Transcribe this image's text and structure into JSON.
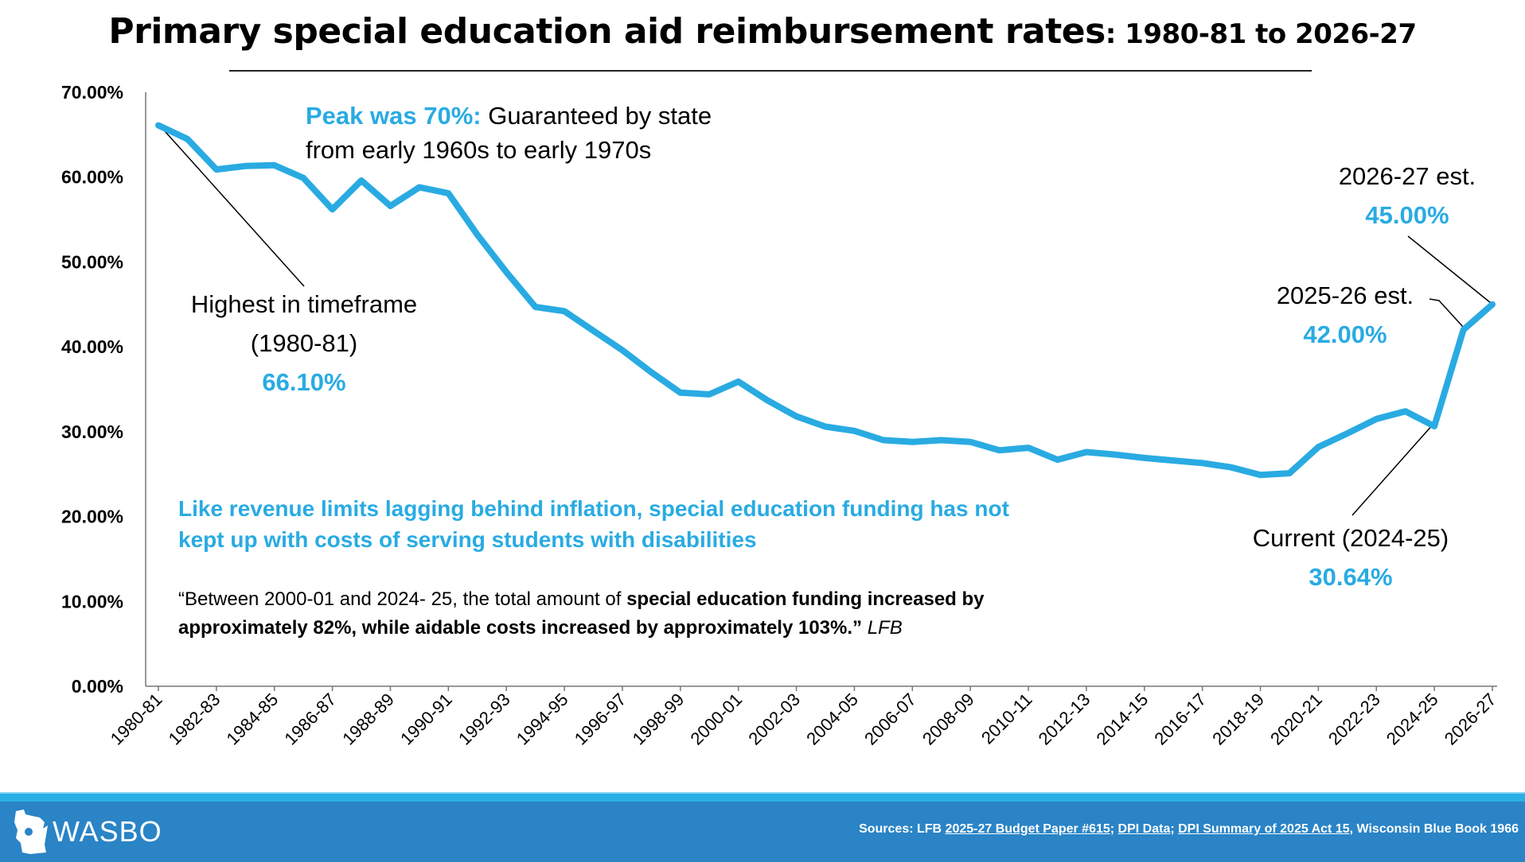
{
  "title": {
    "main": "Primary special education aid reimbursement rates",
    "range": ": 1980-81 to 2026-27"
  },
  "chart_data": {
    "type": "line",
    "title": "Primary special education aid reimbursement rates: 1980-81 to 2026-27",
    "xlabel": "",
    "ylabel": "",
    "ylim": [
      0,
      70
    ],
    "grid": false,
    "y_ticks": [
      "0.00%",
      "10.00%",
      "20.00%",
      "30.00%",
      "40.00%",
      "50.00%",
      "60.00%",
      "70.00%"
    ],
    "x_tick_labels": [
      "1980-81",
      "1982-83",
      "1984-85",
      "1986-87",
      "1988-89",
      "1990-91",
      "1992-93",
      "1994-95",
      "1996-97",
      "1998-99",
      "2000-01",
      "2002-03",
      "2004-05",
      "2006-07",
      "2008-09",
      "2010-11",
      "2012-13",
      "2014-15",
      "2016-17",
      "2018-19",
      "2020-21",
      "2022-23",
      "2024-25",
      "2026-27"
    ],
    "categories": [
      "1980-81",
      "1981-82",
      "1982-83",
      "1983-84",
      "1984-85",
      "1985-86",
      "1986-87",
      "1987-88",
      "1988-89",
      "1989-90",
      "1990-91",
      "1991-92",
      "1992-93",
      "1993-94",
      "1994-95",
      "1995-96",
      "1996-97",
      "1997-98",
      "1998-99",
      "1999-00",
      "2000-01",
      "2001-02",
      "2002-03",
      "2003-04",
      "2004-05",
      "2005-06",
      "2006-07",
      "2007-08",
      "2008-09",
      "2009-10",
      "2010-11",
      "2011-12",
      "2012-13",
      "2013-14",
      "2014-15",
      "2015-16",
      "2016-17",
      "2017-18",
      "2018-19",
      "2019-20",
      "2020-21",
      "2021-22",
      "2022-23",
      "2023-24",
      "2024-25",
      "2025-26",
      "2026-27"
    ],
    "values": [
      66.1,
      64.5,
      60.9,
      61.3,
      61.4,
      59.9,
      56.2,
      59.6,
      56.6,
      58.8,
      58.1,
      53.2,
      48.8,
      44.7,
      44.2,
      41.9,
      39.6,
      37.0,
      34.6,
      34.4,
      35.9,
      33.7,
      31.8,
      30.6,
      30.1,
      29.0,
      28.8,
      29.0,
      28.8,
      27.8,
      28.1,
      26.7,
      27.6,
      27.3,
      26.9,
      26.6,
      26.3,
      25.8,
      24.9,
      25.1,
      28.2,
      29.8,
      31.5,
      32.4,
      30.64,
      42.0,
      45.0
    ],
    "line_color": "#29abe2"
  },
  "annotations": {
    "peak_highlight": "Peak was 70%:",
    "peak_text_1": " Guaranteed by state",
    "peak_text_2": "from early 1960s to early 1970s",
    "highest_1": "Highest in timeframe",
    "highest_2": "(1980-81)",
    "highest_value": "66.10%",
    "est2627_label": "2026-27 est.",
    "est2627_value": "45.00%",
    "est2526_label": "2025-26 est.",
    "est2526_value": "42.00%",
    "current_label": "Current (2024-25)",
    "current_value": "30.64%",
    "message": "Like revenue limits lagging behind inflation, special education funding has not kept up with costs of serving students with disabilities",
    "quote_start": "“Between 2000-01 and 2024- 25, the total amount of ",
    "quote_bold": "special education funding increased by approximately 82%, while aidable costs increased by approximately 103%.”",
    "quote_source": " LFB"
  },
  "footer": {
    "logo": "WASBO",
    "sources_prefix": "Sources: LFB ",
    "source_1": "2025-27 Budget Paper #615",
    "sep_1": "; ",
    "source_2": "DPI Data",
    "sep_2": "; ",
    "source_3": "DPI Summary of 2025 Act 15,",
    "source_4": " Wisconsin Blue Book 1966",
    "bar_color": "#2a84c6"
  }
}
